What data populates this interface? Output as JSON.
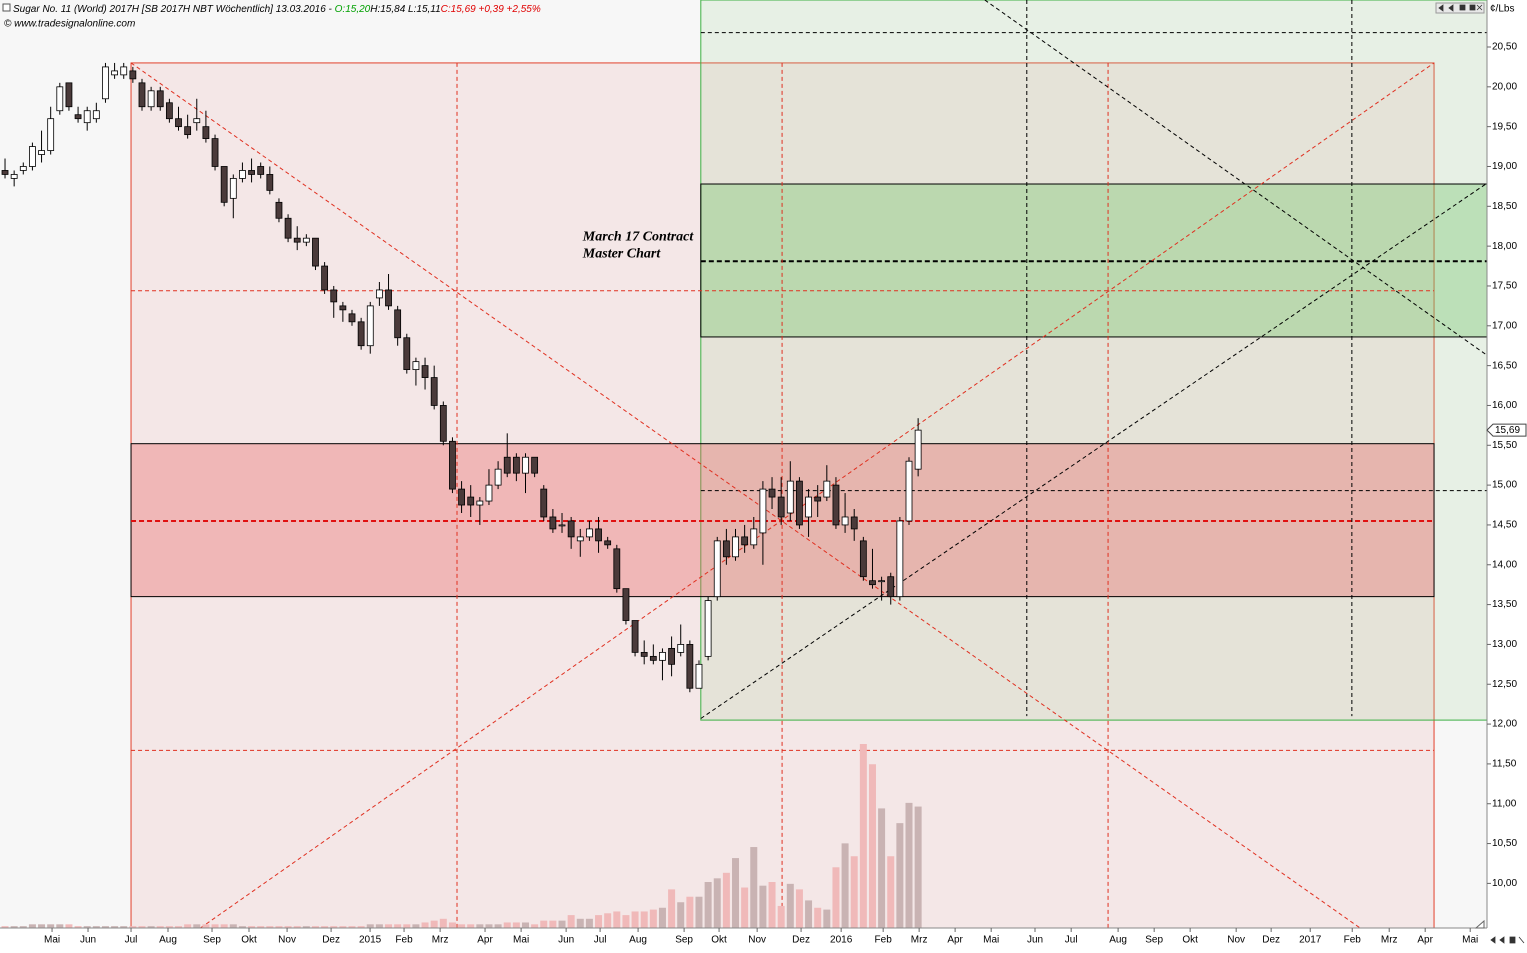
{
  "chart_data": {
    "type": "candlestick",
    "header": [
      "Sugar No. 11 (World) 2017H [SB 2017H NBT  Wöchentlich] 13.03.2016 - ",
      "O:15,20",
      "H:15,84 L:15,11",
      "C:15,69 +0,39 +2,55%"
    ],
    "header_colors": [
      "#000000",
      "#00a000",
      "#000000",
      "#e00000"
    ],
    "copyright": "© www.tradesignalonline.com",
    "annotation": [
      "March 17 Contract",
      "Master Chart"
    ],
    "annotation_at": [
      76.2,
      18.0
    ],
    "unit": "¢/Lbs",
    "last_price": {
      "value": 15.69,
      "label": "15,69"
    },
    "xlim": [
      -0.55,
      162.3
    ],
    "ylim": [
      9.44,
      21.09
    ],
    "vlim": [
      0,
      100
    ],
    "yticks": [
      {
        "value": 10,
        "label": "10,00"
      },
      {
        "value": 10.5,
        "label": "10,50"
      },
      {
        "value": 11,
        "label": "11,00"
      },
      {
        "value": 11.5,
        "label": "11,50"
      },
      {
        "value": 12,
        "label": "12,00"
      },
      {
        "value": 12.5,
        "label": "12,50"
      },
      {
        "value": 13,
        "label": "13,00"
      },
      {
        "value": 13.5,
        "label": "13,50"
      },
      {
        "value": 14,
        "label": "14,00"
      },
      {
        "value": 14.5,
        "label": "14,50"
      },
      {
        "value": 15,
        "label": "15,00"
      },
      {
        "value": 15.5,
        "label": "15,50"
      },
      {
        "value": 16,
        "label": "16,00"
      },
      {
        "value": 16.5,
        "label": "16,50"
      },
      {
        "value": 17,
        "label": "17,00"
      },
      {
        "value": 17.5,
        "label": "17,50"
      },
      {
        "value": 18,
        "label": "18,00"
      },
      {
        "value": 18.5,
        "label": "18,50"
      },
      {
        "value": 19,
        "label": "19,00"
      },
      {
        "value": 19.5,
        "label": "19,50"
      },
      {
        "value": 20,
        "label": "20,00"
      },
      {
        "value": 20.5,
        "label": "20,50"
      }
    ],
    "xticks": [
      {
        "value": 5.15,
        "label": "Mai"
      },
      {
        "value": 9.09,
        "label": "Jun"
      },
      {
        "value": 13.8,
        "label": "Jul"
      },
      {
        "value": 17.85,
        "label": "Aug"
      },
      {
        "value": 22.67,
        "label": "Sep"
      },
      {
        "value": 26.72,
        "label": "Okt"
      },
      {
        "value": 30.89,
        "label": "Nov"
      },
      {
        "value": 35.71,
        "label": "Dez"
      },
      {
        "value": 39.98,
        "label": "2015"
      },
      {
        "value": 43.7,
        "label": "Feb"
      },
      {
        "value": 47.65,
        "label": "Mrz"
      },
      {
        "value": 52.57,
        "label": "Apr"
      },
      {
        "value": 56.52,
        "label": "Mai"
      },
      {
        "value": 61.45,
        "label": "Jun"
      },
      {
        "value": 65.17,
        "label": "Jul"
      },
      {
        "value": 69.33,
        "label": "Aug"
      },
      {
        "value": 74.37,
        "label": "Sep"
      },
      {
        "value": 78.2,
        "label": "Okt"
      },
      {
        "value": 82.37,
        "label": "Nov"
      },
      {
        "value": 87.18,
        "label": "Dez"
      },
      {
        "value": 91.57,
        "label": "2016"
      },
      {
        "value": 96.17,
        "label": "Feb"
      },
      {
        "value": 100.11,
        "label": "Mrz"
      },
      {
        "value": 104.05,
        "label": "Apr"
      },
      {
        "value": 108.0,
        "label": "Mai"
      },
      {
        "value": 112.8,
        "label": "Jun"
      },
      {
        "value": 116.76,
        "label": "Jul"
      },
      {
        "value": 121.9,
        "label": "Aug"
      },
      {
        "value": 125.85,
        "label": "Sep"
      },
      {
        "value": 129.79,
        "label": "Okt"
      },
      {
        "value": 134.83,
        "label": "Nov"
      },
      {
        "value": 138.66,
        "label": "Dez"
      },
      {
        "value": 142.94,
        "label": "2017"
      },
      {
        "value": 147.54,
        "label": "Feb"
      },
      {
        "value": 151.59,
        "label": "Mrz"
      },
      {
        "value": 155.53,
        "label": "Apr"
      },
      {
        "value": 160.46,
        "label": "Mai"
      }
    ],
    "up_color": "#ffffff",
    "down_color": "#4a3a3a",
    "wick_color": "#000000",
    "volume_up_color": "#c9b3b3",
    "volume_down_color": "#f0b9b9",
    "ohlc": [
      [
        18.95,
        19.1,
        18.85,
        18.9
      ],
      [
        18.85,
        18.95,
        18.75,
        18.9
      ],
      [
        18.95,
        19.05,
        18.9,
        19.0
      ],
      [
        19.0,
        19.3,
        18.95,
        19.25
      ],
      [
        19.15,
        19.45,
        19.05,
        19.2
      ],
      [
        19.2,
        19.75,
        19.15,
        19.6
      ],
      [
        19.7,
        20.05,
        19.65,
        20.0
      ],
      [
        20.05,
        20.05,
        19.7,
        19.75
      ],
      [
        19.65,
        19.75,
        19.55,
        19.6
      ],
      [
        19.55,
        19.75,
        19.45,
        19.7
      ],
      [
        19.6,
        19.8,
        19.55,
        19.7
      ],
      [
        19.85,
        20.3,
        19.8,
        20.25
      ],
      [
        20.15,
        20.3,
        20.1,
        20.2
      ],
      [
        20.15,
        20.3,
        20.1,
        20.25
      ],
      [
        20.2,
        20.25,
        20.05,
        20.1
      ],
      [
        20.05,
        20.1,
        19.7,
        19.75
      ],
      [
        19.75,
        20.0,
        19.7,
        19.95
      ],
      [
        19.95,
        20.0,
        19.7,
        19.75
      ],
      [
        19.8,
        19.85,
        19.55,
        19.6
      ],
      [
        19.6,
        19.75,
        19.45,
        19.5
      ],
      [
        19.5,
        19.65,
        19.35,
        19.4
      ],
      [
        19.55,
        19.85,
        19.45,
        19.6
      ],
      [
        19.5,
        19.7,
        19.3,
        19.35
      ],
      [
        19.35,
        19.4,
        18.95,
        19.0
      ],
      [
        19.0,
        19.0,
        18.5,
        18.55
      ],
      [
        18.6,
        18.9,
        18.35,
        18.85
      ],
      [
        18.85,
        19.05,
        18.8,
        18.95
      ],
      [
        18.95,
        19.1,
        18.8,
        18.9
      ],
      [
        19.0,
        19.05,
        18.85,
        18.9
      ],
      [
        18.9,
        19.0,
        18.65,
        18.7
      ],
      [
        18.55,
        18.6,
        18.3,
        18.35
      ],
      [
        18.35,
        18.4,
        18.05,
        18.1
      ],
      [
        18.1,
        18.25,
        17.95,
        18.05
      ],
      [
        18.05,
        18.15,
        18.0,
        18.1
      ],
      [
        18.1,
        18.1,
        17.7,
        17.75
      ],
      [
        17.75,
        17.8,
        17.4,
        17.45
      ],
      [
        17.45,
        17.5,
        17.1,
        17.3
      ],
      [
        17.25,
        17.3,
        17.05,
        17.2
      ],
      [
        17.15,
        17.2,
        17.0,
        17.05
      ],
      [
        17.05,
        17.1,
        16.7,
        16.75
      ],
      [
        16.75,
        17.3,
        16.65,
        17.25
      ],
      [
        17.35,
        17.55,
        17.25,
        17.45
      ],
      [
        17.45,
        17.65,
        17.2,
        17.25
      ],
      [
        17.2,
        17.25,
        16.75,
        16.85
      ],
      [
        16.85,
        16.9,
        16.4,
        16.45
      ],
      [
        16.45,
        16.6,
        16.25,
        16.55
      ],
      [
        16.5,
        16.6,
        16.2,
        16.35
      ],
      [
        16.35,
        16.5,
        15.95,
        16.0
      ],
      [
        16.0,
        16.05,
        15.5,
        15.55
      ],
      [
        15.55,
        15.6,
        14.9,
        14.95
      ],
      [
        14.95,
        15.05,
        14.65,
        14.75
      ],
      [
        14.85,
        15.0,
        14.6,
        14.75
      ],
      [
        14.75,
        14.85,
        14.5,
        14.8
      ],
      [
        14.8,
        15.2,
        14.75,
        15.0
      ],
      [
        15.0,
        15.3,
        14.95,
        15.2
      ],
      [
        15.35,
        15.65,
        15.1,
        15.15
      ],
      [
        15.35,
        15.4,
        15.05,
        15.15
      ],
      [
        15.15,
        15.4,
        14.9,
        15.35
      ],
      [
        15.35,
        15.35,
        15.1,
        15.15
      ],
      [
        14.95,
        15.0,
        14.55,
        14.6
      ],
      [
        14.6,
        14.7,
        14.4,
        14.45
      ],
      [
        14.5,
        14.65,
        14.4,
        14.5
      ],
      [
        14.55,
        14.6,
        14.2,
        14.35
      ],
      [
        14.3,
        14.45,
        14.1,
        14.35
      ],
      [
        14.35,
        14.55,
        14.3,
        14.45
      ],
      [
        14.45,
        14.6,
        14.15,
        14.3
      ],
      [
        14.3,
        14.35,
        14.2,
        14.25
      ],
      [
        14.2,
        14.25,
        13.65,
        13.7
      ],
      [
        13.7,
        13.7,
        13.25,
        13.3
      ],
      [
        13.3,
        13.3,
        12.85,
        12.9
      ],
      [
        12.9,
        13.05,
        12.75,
        12.85
      ],
      [
        12.85,
        13.0,
        12.75,
        12.8
      ],
      [
        12.8,
        12.95,
        12.55,
        12.9
      ],
      [
        12.95,
        13.1,
        12.6,
        12.75
      ],
      [
        12.9,
        13.25,
        12.85,
        13.0
      ],
      [
        13.0,
        13.05,
        12.4,
        12.45
      ],
      [
        12.45,
        12.8,
        12.45,
        12.75
      ],
      [
        12.85,
        13.6,
        12.8,
        13.55
      ],
      [
        13.6,
        14.35,
        13.55,
        14.3
      ],
      [
        14.3,
        14.45,
        14.0,
        14.1
      ],
      [
        14.1,
        14.45,
        14.05,
        14.35
      ],
      [
        14.35,
        14.5,
        14.15,
        14.25
      ],
      [
        14.25,
        14.6,
        14.2,
        14.45
      ],
      [
        14.4,
        15.05,
        14.0,
        14.95
      ],
      [
        14.95,
        15.1,
        14.7,
        14.85
      ],
      [
        14.85,
        15.1,
        14.5,
        14.6
      ],
      [
        14.65,
        15.3,
        14.55,
        15.05
      ],
      [
        15.05,
        15.1,
        14.45,
        14.5
      ],
      [
        14.6,
        14.95,
        14.35,
        14.85
      ],
      [
        14.85,
        15.0,
        14.6,
        14.8
      ],
      [
        14.85,
        15.25,
        14.8,
        15.05
      ],
      [
        15.0,
        15.1,
        14.45,
        14.5
      ],
      [
        14.5,
        14.9,
        14.4,
        14.6
      ],
      [
        14.6,
        14.7,
        14.3,
        14.45
      ],
      [
        14.3,
        14.35,
        13.8,
        13.85
      ],
      [
        13.8,
        14.2,
        13.7,
        13.75
      ],
      [
        13.8,
        13.85,
        13.55,
        13.8
      ],
      [
        13.85,
        13.9,
        13.5,
        13.6
      ],
      [
        13.6,
        14.6,
        13.55,
        14.55
      ],
      [
        14.55,
        15.35,
        14.5,
        15.3
      ],
      [
        15.2,
        15.84,
        15.11,
        15.69
      ]
    ],
    "volume": [
      1,
      1,
      1,
      2,
      2,
      2,
      2,
      2,
      1,
      1,
      1,
      1,
      1,
      1,
      1,
      1,
      1,
      1,
      1,
      1,
      2,
      2,
      2,
      2,
      2,
      2,
      1,
      1,
      1,
      1,
      1,
      1,
      1,
      1,
      1,
      1,
      1,
      1,
      1,
      1,
      2,
      2,
      2,
      2,
      2,
      2,
      3,
      4,
      5,
      3,
      2,
      2,
      2,
      2,
      2,
      3,
      3,
      3,
      2,
      4,
      4,
      4,
      7,
      5,
      5,
      7,
      8,
      9,
      7,
      9,
      9,
      10,
      11,
      21,
      14,
      17,
      17,
      25,
      27,
      30,
      38,
      22,
      44,
      23,
      25,
      12,
      24,
      21,
      15,
      11,
      10,
      33,
      46,
      39,
      100,
      89,
      65,
      39,
      57,
      68,
      66
    ],
    "zones": [
      {
        "from": 13.8,
        "to": 156.5,
        "low": 9.44,
        "high": 20.3,
        "fill": "rgba(236,170,170,0.20)",
        "stroke": "#e2402c"
      },
      {
        "from": 76.2,
        "to": 162.3,
        "low": 12.05,
        "high": 21.09,
        "fill": "rgba(170,215,160,0.20)",
        "stroke": "#3cb043"
      },
      {
        "from": 13.8,
        "to": 156.5,
        "low": 13.6,
        "high": 15.52,
        "fill": "rgba(232,100,100,0.36)",
        "stroke": "#000000"
      },
      {
        "from": 76.2,
        "to": 162.3,
        "low": 16.86,
        "high": 18.78,
        "fill": "rgba(110,195,100,0.35)",
        "stroke": "#000000"
      }
    ],
    "lines": [
      {
        "x1": 13.8,
        "y1": 17.44,
        "x2": 156.5,
        "y2": 17.44,
        "color": "#e03020",
        "width": 1,
        "dash": "4,3"
      },
      {
        "x1": 13.8,
        "y1": 11.67,
        "x2": 156.5,
        "y2": 11.67,
        "color": "#e03020",
        "width": 1,
        "dash": "4,3"
      },
      {
        "x1": 13.8,
        "y1": 14.55,
        "x2": 156.5,
        "y2": 14.55,
        "color": "#e01010",
        "width": 2,
        "dash": "5,3"
      },
      {
        "x1": 76.2,
        "y1": 14.93,
        "x2": 162.3,
        "y2": 14.93,
        "color": "#000000",
        "width": 1,
        "dash": "4,3"
      },
      {
        "x1": 76.2,
        "y1": 17.81,
        "x2": 162.3,
        "y2": 17.81,
        "color": "#000000",
        "width": 2,
        "dash": "5,3"
      },
      {
        "x1": 76.2,
        "y1": 20.68,
        "x2": 162.3,
        "y2": 20.68,
        "color": "#000000",
        "width": 1,
        "dash": "4,3"
      },
      {
        "x1": 49.5,
        "y1": 20.3,
        "x2": 49.5,
        "y2": 9.44,
        "color": "#e03020",
        "width": 1,
        "dash": "4,3"
      },
      {
        "x1": 85.1,
        "y1": 20.3,
        "x2": 85.1,
        "y2": 9.44,
        "color": "#e03020",
        "width": 1,
        "dash": "4,3"
      },
      {
        "x1": 120.8,
        "y1": 20.3,
        "x2": 120.8,
        "y2": 9.44,
        "color": "#e03020",
        "width": 1,
        "dash": "4,3"
      },
      {
        "x1": 111.9,
        "y1": 21.09,
        "x2": 111.9,
        "y2": 12.1,
        "color": "#000000",
        "width": 1,
        "dash": "4,3"
      },
      {
        "x1": 147.5,
        "y1": 21.09,
        "x2": 147.5,
        "y2": 12.1,
        "color": "#000000",
        "width": 1,
        "dash": "4,3"
      },
      {
        "x1": 13.8,
        "y1": 20.3,
        "x2": 148.4,
        "y2": 9.44,
        "color": "#e03020",
        "width": 1,
        "dash": "4,3"
      },
      {
        "x1": 21.4,
        "y1": 9.44,
        "x2": 156.5,
        "y2": 20.3,
        "color": "#e03020",
        "width": 1,
        "dash": "4,3"
      },
      {
        "x1": 76.2,
        "y1": 12.07,
        "x2": 162.3,
        "y2": 18.79,
        "color": "#000000",
        "width": 1,
        "dash": "4,3"
      },
      {
        "x1": 107.3,
        "y1": 21.09,
        "x2": 162.3,
        "y2": 16.63,
        "color": "#000000",
        "width": 1,
        "dash": "4,3"
      }
    ]
  }
}
